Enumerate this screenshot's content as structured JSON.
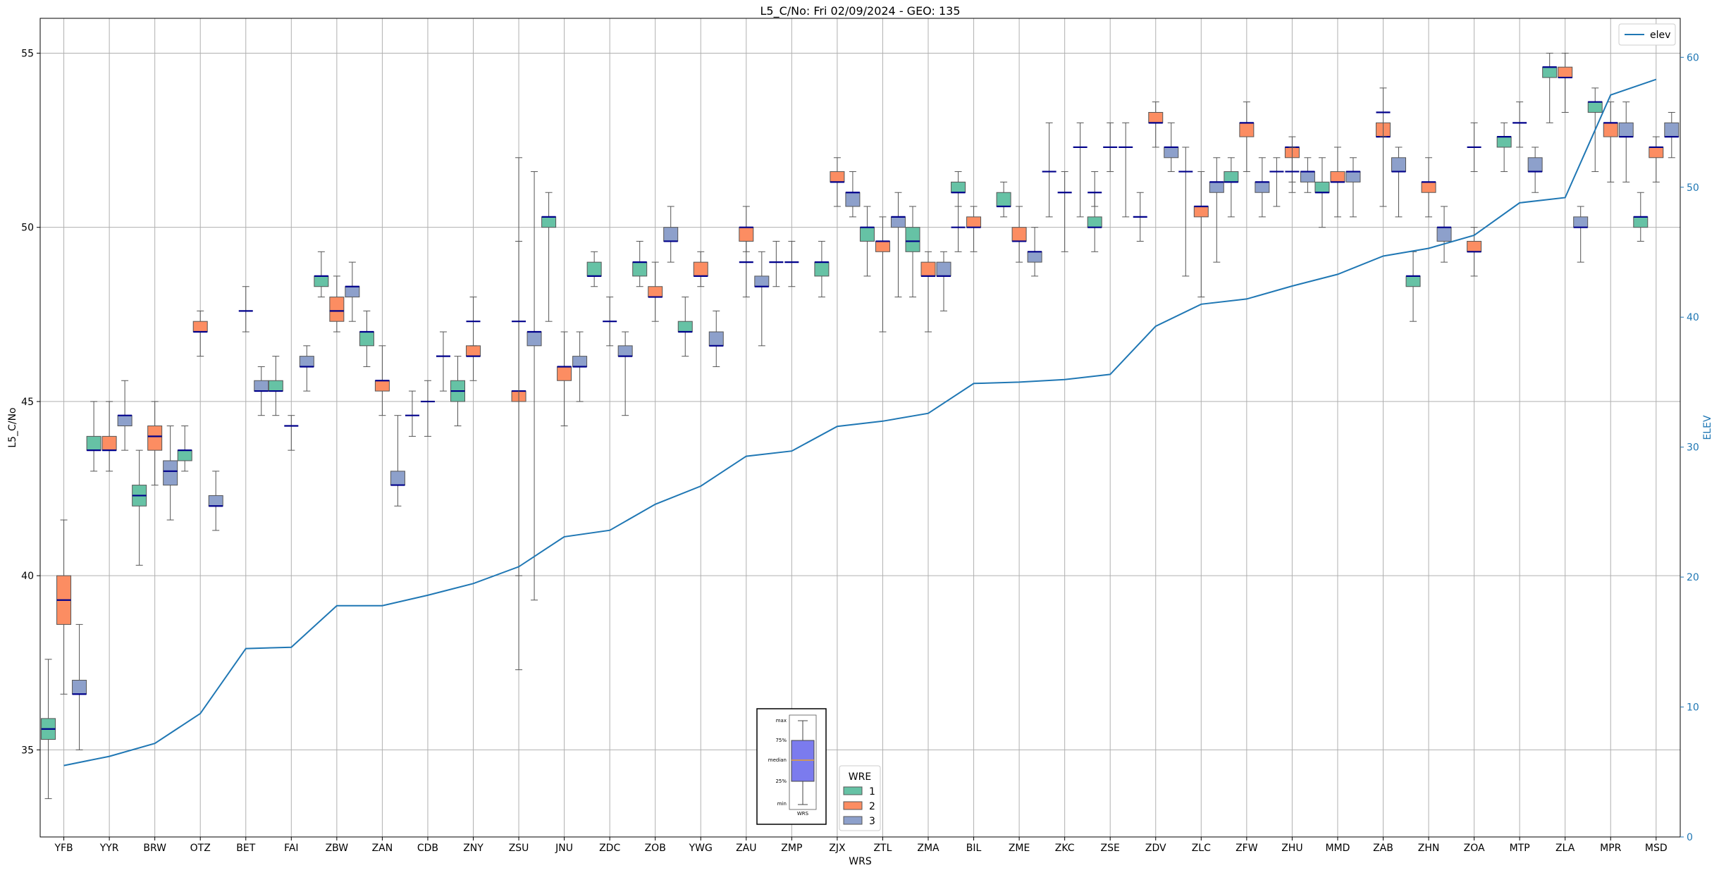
{
  "chart_data": {
    "type": "box",
    "title": "L5_C/No: Fri 02/09/2024 - GEO: 135",
    "xlabel": "WRS",
    "ylabel": "L5_C/No",
    "y2label": "ELEV",
    "ylim": [
      32.5,
      56.0
    ],
    "y2lim": [
      0,
      63
    ],
    "yticks": [
      35,
      40,
      45,
      50,
      55
    ],
    "y2ticks": [
      0,
      10,
      20,
      30,
      40,
      50,
      60
    ],
    "grid": true,
    "categories": [
      "YFB",
      "YYR",
      "BRW",
      "OTZ",
      "BET",
      "FAI",
      "ZBW",
      "ZAN",
      "CDB",
      "ZNY",
      "ZSU",
      "JNU",
      "ZDC",
      "ZOB",
      "YWG",
      "ZAU",
      "ZMP",
      "ZJX",
      "ZTL",
      "ZMA",
      "BIL",
      "ZME",
      "ZKC",
      "ZSE",
      "ZDV",
      "ZLC",
      "ZFW",
      "ZHU",
      "MMD",
      "ZAB",
      "ZHN",
      "ZOA",
      "MTP",
      "ZLA",
      "MPR",
      "MSD"
    ],
    "box_series": [
      {
        "name": "1",
        "color": "#66c2a5",
        "boxes": [
          [
            33.6,
            35.3,
            35.6,
            35.9,
            37.6
          ],
          [
            43.0,
            43.6,
            43.6,
            44.0,
            45.0
          ],
          [
            40.3,
            42.0,
            42.3,
            42.6,
            43.6
          ],
          [
            43.0,
            43.3,
            43.6,
            43.6,
            44.3
          ],
          null,
          [
            44.6,
            45.3,
            45.3,
            45.6,
            46.3
          ],
          [
            48.0,
            48.3,
            48.6,
            48.6,
            49.3
          ],
          [
            46.0,
            46.6,
            47.0,
            47.0,
            47.6
          ],
          null,
          [
            44.3,
            45.0,
            45.3,
            45.6,
            46.3
          ],
          null,
          [
            47.3,
            50.0,
            50.3,
            50.3,
            51.0
          ],
          [
            48.3,
            48.6,
            48.6,
            49.0,
            49.3
          ],
          [
            48.3,
            48.6,
            49.0,
            49.0,
            49.6
          ],
          [
            46.3,
            47.0,
            47.0,
            47.3,
            48.0
          ],
          null,
          null,
          [
            48.0,
            48.6,
            49.0,
            49.0,
            49.6
          ],
          [
            48.6,
            49.6,
            50.0,
            50.0,
            50.6
          ],
          [
            48.0,
            49.3,
            49.6,
            50.0,
            50.6
          ],
          [
            50.6,
            51.0,
            51.0,
            51.3,
            51.6
          ],
          [
            50.3,
            50.6,
            50.6,
            51.0,
            51.3
          ],
          null,
          [
            49.3,
            50.0,
            50.0,
            50.3,
            51.0
          ],
          null,
          null,
          [
            50.3,
            51.3,
            51.3,
            51.6,
            52.0
          ],
          null,
          [
            50.0,
            51.0,
            51.0,
            51.3,
            52.0
          ],
          null,
          [
            47.3,
            48.3,
            48.6,
            48.6,
            49.3
          ],
          null,
          [
            51.6,
            52.3,
            52.6,
            52.6,
            53.0
          ],
          [
            53.0,
            54.3,
            54.6,
            54.6,
            55.0
          ],
          [
            51.6,
            53.3,
            53.6,
            53.6,
            54.0
          ],
          [
            49.6,
            50.0,
            50.3,
            50.3,
            51.0
          ]
        ]
      },
      {
        "name": "2",
        "color": "#fc8d62",
        "boxes": [
          [
            36.6,
            38.6,
            39.3,
            40.0,
            41.6
          ],
          [
            43.0,
            43.6,
            43.6,
            44.0,
            45.0
          ],
          [
            42.6,
            43.6,
            44.0,
            44.3,
            45.0
          ],
          [
            46.3,
            47.0,
            47.0,
            47.3,
            47.6
          ],
          null,
          null,
          [
            47.0,
            47.3,
            47.6,
            48.0,
            48.6
          ],
          [
            44.6,
            45.3,
            45.6,
            45.6,
            46.6
          ],
          null,
          [
            45.6,
            46.3,
            46.3,
            46.6,
            47.3
          ],
          [
            37.3,
            45.0,
            45.3,
            45.3,
            49.6
          ],
          [
            44.3,
            45.6,
            46.0,
            46.0,
            47.0
          ],
          null,
          [
            47.3,
            48.0,
            48.0,
            48.3,
            49.0
          ],
          [
            48.3,
            48.6,
            48.6,
            49.0,
            49.3
          ],
          [
            49.3,
            49.6,
            50.0,
            50.0,
            50.6
          ],
          null,
          [
            50.6,
            51.3,
            51.3,
            51.6,
            52.0
          ],
          [
            47.0,
            49.3,
            49.6,
            49.6,
            50.3
          ],
          [
            47.0,
            48.6,
            48.6,
            49.0,
            49.3
          ],
          [
            49.3,
            50.0,
            50.0,
            50.3,
            50.6
          ],
          [
            49.0,
            49.6,
            49.6,
            50.0,
            50.6
          ],
          null,
          null,
          [
            52.3,
            53.0,
            53.0,
            53.3,
            53.6
          ],
          [
            48.0,
            50.3,
            50.6,
            50.6,
            51.6
          ],
          [
            51.6,
            52.6,
            53.0,
            53.0,
            53.6
          ],
          [
            51.3,
            52.0,
            52.3,
            52.3,
            52.6
          ],
          [
            50.3,
            51.3,
            51.3,
            51.6,
            52.3
          ],
          [
            50.6,
            52.6,
            52.6,
            53.0,
            53.3
          ],
          [
            50.3,
            51.0,
            51.3,
            51.3,
            52.0
          ],
          [
            48.6,
            49.3,
            49.3,
            49.6,
            50.0
          ],
          null,
          [
            53.3,
            54.3,
            54.3,
            54.6,
            55.0
          ],
          [
            51.3,
            52.6,
            53.0,
            53.0,
            53.6
          ],
          [
            51.3,
            52.0,
            52.3,
            52.3,
            52.6
          ]
        ]
      },
      {
        "name": "3",
        "color": "#8da0cb",
        "boxes": [
          [
            35.0,
            36.6,
            36.6,
            37.0,
            38.6
          ],
          [
            43.6,
            44.3,
            44.6,
            44.6,
            45.6
          ],
          [
            41.6,
            42.6,
            43.0,
            43.3,
            44.3
          ],
          [
            41.3,
            42.0,
            42.0,
            42.3,
            43.0
          ],
          [
            44.6,
            45.3,
            45.3,
            45.6,
            46.0
          ],
          [
            45.3,
            46.0,
            46.0,
            46.3,
            46.6
          ],
          [
            47.3,
            48.0,
            48.3,
            48.3,
            49.0
          ],
          [
            42.0,
            42.6,
            42.6,
            43.0,
            44.6
          ],
          null,
          null,
          [
            39.3,
            46.6,
            47.0,
            47.0,
            51.6
          ],
          [
            45.0,
            46.0,
            46.0,
            46.3,
            47.0
          ],
          [
            44.6,
            46.3,
            46.3,
            46.6,
            47.0
          ],
          [
            49.0,
            49.6,
            49.6,
            50.0,
            50.6
          ],
          [
            46.0,
            46.6,
            46.6,
            47.0,
            47.6
          ],
          [
            46.6,
            48.3,
            48.3,
            48.6,
            49.3
          ],
          null,
          [
            50.3,
            50.6,
            51.0,
            51.0,
            51.6
          ],
          [
            48.0,
            50.0,
            50.3,
            50.3,
            51.0
          ],
          [
            47.6,
            48.6,
            48.6,
            49.0,
            49.3
          ],
          null,
          [
            48.6,
            49.0,
            49.3,
            49.3,
            50.0
          ],
          null,
          null,
          [
            51.6,
            52.0,
            52.3,
            52.3,
            53.0
          ],
          [
            49.0,
            51.0,
            51.3,
            51.3,
            52.0
          ],
          [
            50.3,
            51.0,
            51.3,
            51.3,
            52.0
          ],
          [
            51.0,
            51.3,
            51.6,
            51.6,
            52.0
          ],
          [
            50.3,
            51.3,
            51.6,
            51.6,
            52.0
          ],
          [
            50.3,
            51.6,
            51.6,
            52.0,
            52.3
          ],
          [
            49.0,
            49.6,
            50.0,
            50.0,
            50.6
          ],
          null,
          [
            51.0,
            51.6,
            51.6,
            52.0,
            52.3
          ],
          [
            49.0,
            50.0,
            50.0,
            50.3,
            50.6
          ],
          [
            51.3,
            52.6,
            52.6,
            53.0,
            53.6
          ],
          [
            52.0,
            52.6,
            52.6,
            53.0,
            53.3
          ]
        ]
      }
    ],
    "degenerate_series": [
      {
        "name": "single-value stations",
        "boxes": [
          null,
          null,
          null,
          null,
          [
            47.0,
            47.6,
            47.6,
            47.6,
            48.3
          ],
          [
            43.6,
            44.3,
            44.3,
            44.3,
            44.6
          ],
          null,
          null,
          [
            44.0,
            45.0,
            45.0,
            45.0,
            45.6
          ],
          [
            46.6,
            47.3,
            47.3,
            47.3,
            48.0
          ],
          [
            40.0,
            47.3,
            47.3,
            47.3,
            52.0
          ],
          null,
          [
            46.6,
            47.3,
            47.3,
            47.3,
            48.0
          ],
          null,
          null,
          [
            48.0,
            49.0,
            49.0,
            49.0,
            49.6
          ],
          [
            48.3,
            49.0,
            49.0,
            49.0,
            49.6
          ],
          null,
          null,
          null,
          null,
          null,
          [
            49.3,
            51.0,
            51.0,
            51.0,
            51.6
          ],
          [
            51.6,
            52.3,
            52.3,
            52.3,
            53.0
          ],
          null,
          null,
          null,
          [
            51.0,
            51.6,
            51.6,
            51.6,
            52.3
          ],
          null,
          [
            52.6,
            53.3,
            53.3,
            53.3,
            54.0
          ],
          null,
          [
            51.6,
            52.3,
            52.3,
            52.3,
            53.0
          ],
          [
            52.3,
            53.0,
            53.0,
            53.0,
            53.6
          ],
          null,
          null,
          null
        ]
      },
      {
        "name": "single-value stations b",
        "boxes": [
          null,
          null,
          null,
          null,
          null,
          null,
          null,
          null,
          [
            44.0,
            44.6,
            44.6,
            44.6,
            45.3
          ],
          null,
          null,
          null,
          null,
          null,
          null,
          null,
          [
            48.3,
            49.0,
            49.0,
            49.0,
            49.6
          ],
          null,
          null,
          null,
          [
            49.3,
            50.0,
            50.0,
            50.0,
            50.6
          ],
          null,
          [
            50.3,
            51.6,
            51.6,
            51.6,
            53.0
          ],
          [
            50.6,
            51.0,
            51.0,
            51.0,
            51.6
          ],
          [
            49.6,
            50.3,
            50.3,
            50.3,
            51.0
          ],
          [
            48.6,
            51.6,
            51.6,
            51.6,
            52.3
          ],
          null,
          [
            50.6,
            51.6,
            51.6,
            51.6,
            52.0
          ],
          null,
          null,
          null,
          null,
          null,
          null,
          null,
          null
        ]
      },
      {
        "name": "single-value stations c",
        "boxes": [
          null,
          null,
          null,
          null,
          null,
          null,
          null,
          null,
          [
            45.3,
            46.3,
            46.3,
            46.3,
            47.0
          ],
          null,
          null,
          null,
          null,
          null,
          null,
          null,
          null,
          null,
          null,
          null,
          null,
          null,
          [
            50.3,
            52.3,
            52.3,
            52.3,
            53.0
          ],
          [
            50.3,
            52.3,
            52.3,
            52.3,
            53.0
          ],
          null,
          null,
          null,
          null,
          null,
          null,
          null,
          null,
          null,
          null,
          null,
          null
        ]
      }
    ],
    "elev_series": {
      "name": "elev",
      "color": "#1f77b4",
      "values": [
        5.5,
        6.2,
        7.2,
        9.5,
        14.5,
        14.6,
        17.8,
        17.8,
        18.6,
        19.5,
        20.8,
        23.1,
        23.6,
        25.6,
        27.0,
        29.3,
        29.7,
        31.6,
        32.0,
        32.6,
        34.9,
        35.0,
        35.2,
        35.6,
        39.3,
        41.0,
        41.4,
        42.4,
        43.3,
        44.7,
        45.3,
        46.3,
        48.8,
        49.2,
        57.1,
        58.3
      ]
    },
    "legends": {
      "wre_title": "WRE",
      "wre_entries": [
        "1",
        "2",
        "3"
      ],
      "line_entry": "elev",
      "line_legend_position": "top-right",
      "wre_legend_position": "lower-center"
    },
    "inset": {
      "labels": [
        "max",
        "75%",
        "median",
        "25%",
        "min"
      ],
      "xlabel": "WRS",
      "box_color": "#7b7bee"
    }
  }
}
